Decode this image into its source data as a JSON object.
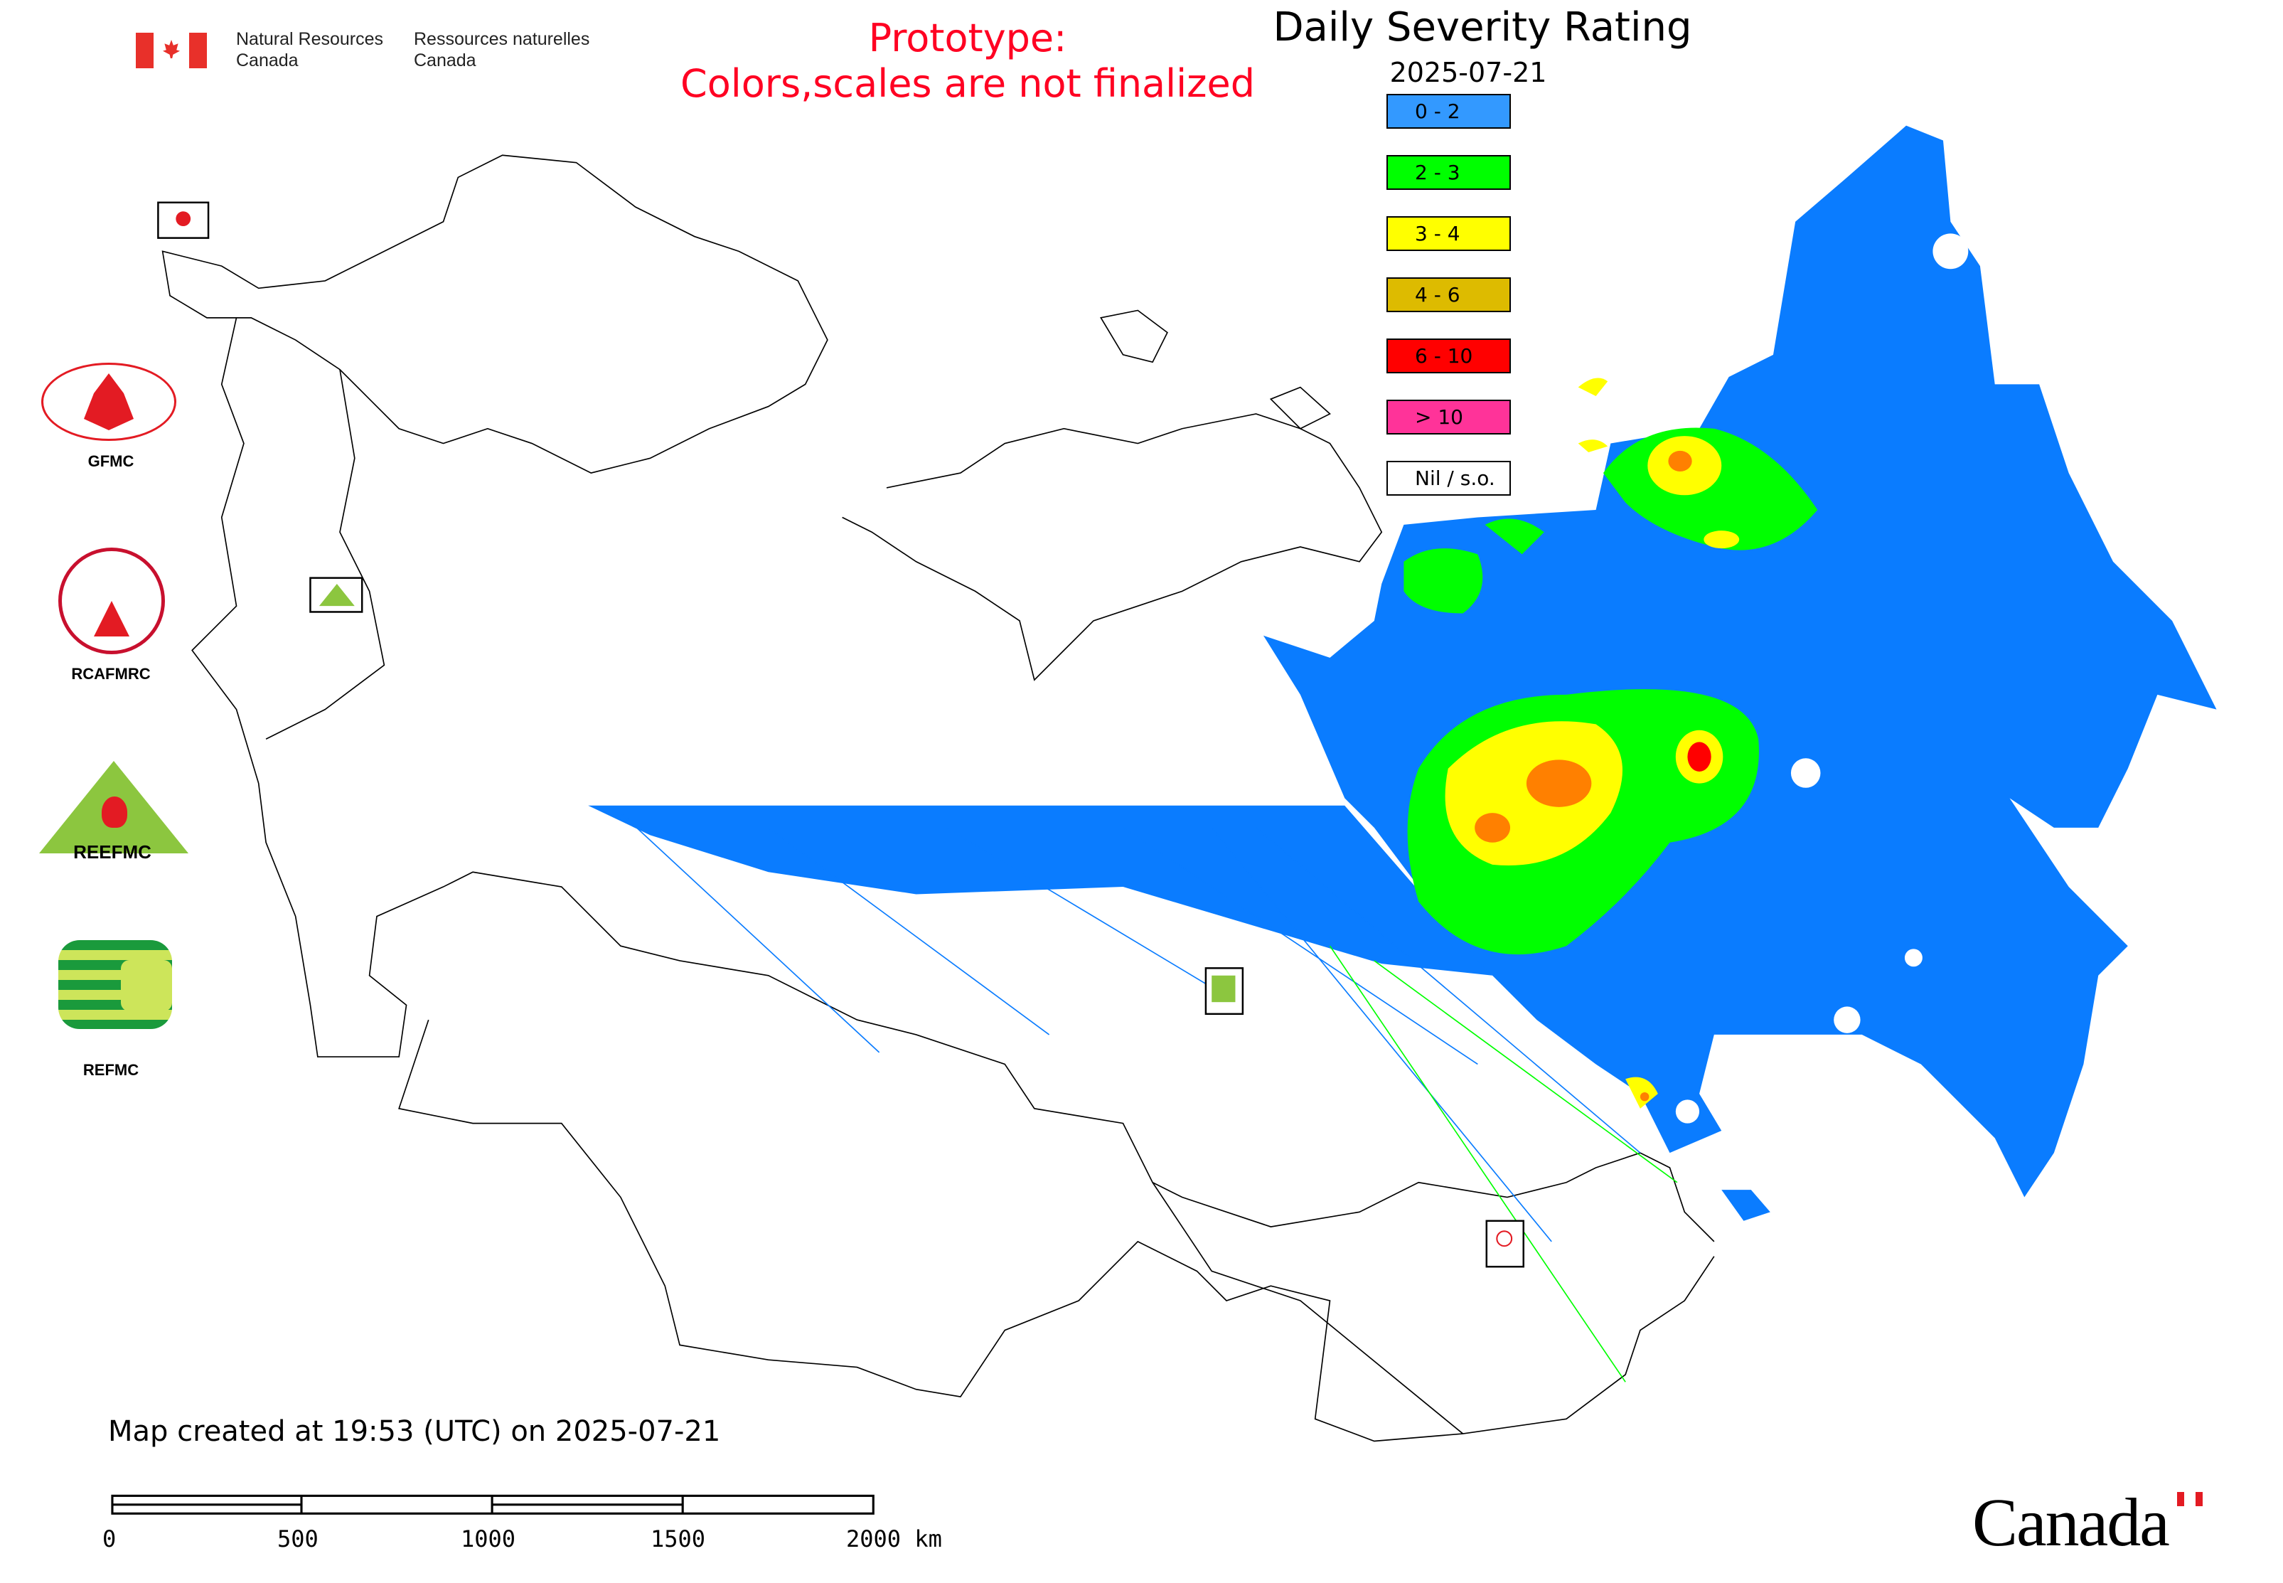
{
  "header": {
    "department_en": [
      "Natural Resources",
      "Canada"
    ],
    "department_fr": [
      "Ressources naturelles",
      "Canada"
    ],
    "prototype_line1": "Prototype:",
    "prototype_line2": "Colors,scales are not finalized"
  },
  "legend": {
    "title": "Daily Severity Rating",
    "date": "2025-07-21",
    "items": [
      {
        "label": "0 - 2",
        "color": "#3399ff"
      },
      {
        "label": "2 - 3",
        "color": "#00ff00"
      },
      {
        "label": "3 - 4",
        "color": "#ffff00"
      },
      {
        "label": "4 - 6",
        "color": "#ddbb00"
      },
      {
        "label": "6 - 10",
        "color": "#ff0000"
      },
      {
        "label": "> 10",
        "color": "#ff3399"
      },
      {
        "label": "Nil / s.o.",
        "color": "#ffffff"
      }
    ]
  },
  "logos": [
    {
      "label": "GFMC"
    },
    {
      "label": "RCAFMRC"
    },
    {
      "label": "REEFMC"
    },
    {
      "label": "REFMC"
    }
  ],
  "map_colors": {
    "low": "#0a7cff",
    "moderate": "#00ff00",
    "high": "#ffff00",
    "very_high": "#ff8000",
    "extreme": "#ff0000"
  },
  "footer": {
    "created": "Map created at 19:53 (UTC) on 2025-07-21",
    "scale_labels": [
      "0",
      "500",
      "1000",
      "1500",
      "2000 km"
    ],
    "wordmark": "Canada"
  }
}
